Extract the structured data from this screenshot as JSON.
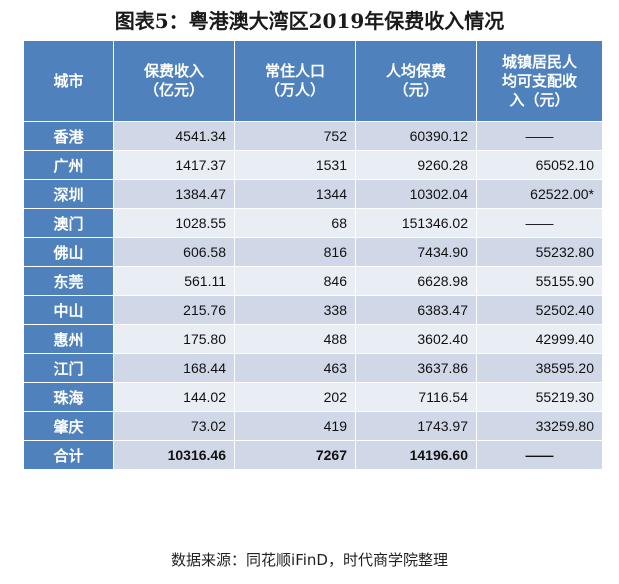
{
  "title": "图表5：粤港澳大湾区2019年保费收入情况",
  "headers": [
    "城市",
    "保费收入\n（亿元）",
    "常住人口\n（万人）",
    "人均保费\n（元）",
    "城镇居民人\n均可支配收\n入（元）"
  ],
  "rows": [
    [
      "香港",
      "4541.34",
      "752",
      "60390.12",
      "——"
    ],
    [
      "广州",
      "1417.37",
      "1531",
      "9260.28",
      "65052.10"
    ],
    [
      "深圳",
      "1384.47",
      "1344",
      "10302.04",
      "62522.00*"
    ],
    [
      "澳门",
      "1028.55",
      "68",
      "151346.02",
      "——"
    ],
    [
      "佛山",
      "606.58",
      "816",
      "7434.90",
      "55232.80"
    ],
    [
      "东莞",
      "561.11",
      "846",
      "6628.98",
      "55155.90"
    ],
    [
      "中山",
      "215.76",
      "338",
      "6383.47",
      "52502.40"
    ],
    [
      "惠州",
      "175.80",
      "488",
      "3602.40",
      "42999.40"
    ],
    [
      "江门",
      "168.44",
      "463",
      "3637.86",
      "38595.20"
    ],
    [
      "珠海",
      "144.02",
      "202",
      "7116.54",
      "55219.30"
    ],
    [
      "肇庆",
      "73.02",
      "419",
      "1743.97",
      "33259.80"
    ]
  ],
  "total": [
    "合计",
    "10316.46",
    "7267",
    "14196.60",
    "——"
  ],
  "source": "数据来源：同花顺iFinD，时代商学院整理"
}
